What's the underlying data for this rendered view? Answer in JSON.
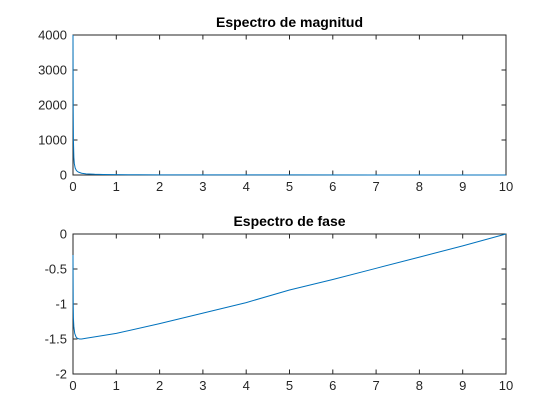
{
  "chart_data": [
    {
      "type": "line",
      "title": "Espectro de magnitud",
      "xlim": [
        0,
        10
      ],
      "ylim": [
        0,
        4000
      ],
      "xticks": [
        "0",
        "1",
        "2",
        "3",
        "4",
        "5",
        "6",
        "7",
        "8",
        "9",
        "10"
      ],
      "yticks": [
        "0",
        "1000",
        "2000",
        "3000",
        "4000"
      ],
      "grid": false,
      "series": [
        {
          "color": "#0072BD",
          "x": [
            0,
            0.002,
            0.005,
            0.01,
            0.02,
            0.03,
            0.05,
            0.08,
            0.12,
            0.2,
            0.3,
            0.5,
            0.7,
            1,
            1.5,
            2,
            3,
            5,
            7,
            10
          ],
          "y": [
            4000,
            3000,
            1800,
            1000,
            500,
            330,
            200,
            125,
            85,
            50,
            33,
            20,
            14,
            10,
            7,
            5,
            3,
            2,
            1,
            0
          ]
        }
      ]
    },
    {
      "type": "line",
      "title": "Espectro de fase",
      "xlim": [
        0,
        10
      ],
      "ylim": [
        -2,
        0
      ],
      "xticks": [
        "0",
        "1",
        "2",
        "3",
        "4",
        "5",
        "6",
        "7",
        "8",
        "9",
        "10"
      ],
      "yticks": [
        "0",
        "-0.5",
        "-1",
        "-1.5",
        "-2"
      ],
      "grid": false,
      "series": [
        {
          "color": "#0072BD",
          "x": [
            0,
            0.005,
            0.01,
            0.02,
            0.04,
            0.07,
            0.1,
            0.15,
            0.2,
            0.3,
            0.5,
            1,
            2,
            3,
            4,
            5,
            6,
            7,
            8,
            9,
            10
          ],
          "y": [
            -0.3,
            -1.0,
            -1.2,
            -1.33,
            -1.42,
            -1.47,
            -1.49,
            -1.5,
            -1.5,
            -1.49,
            -1.47,
            -1.42,
            -1.28,
            -1.13,
            -0.98,
            -0.8,
            -0.65,
            -0.49,
            -0.33,
            -0.17,
            0
          ]
        }
      ]
    }
  ]
}
